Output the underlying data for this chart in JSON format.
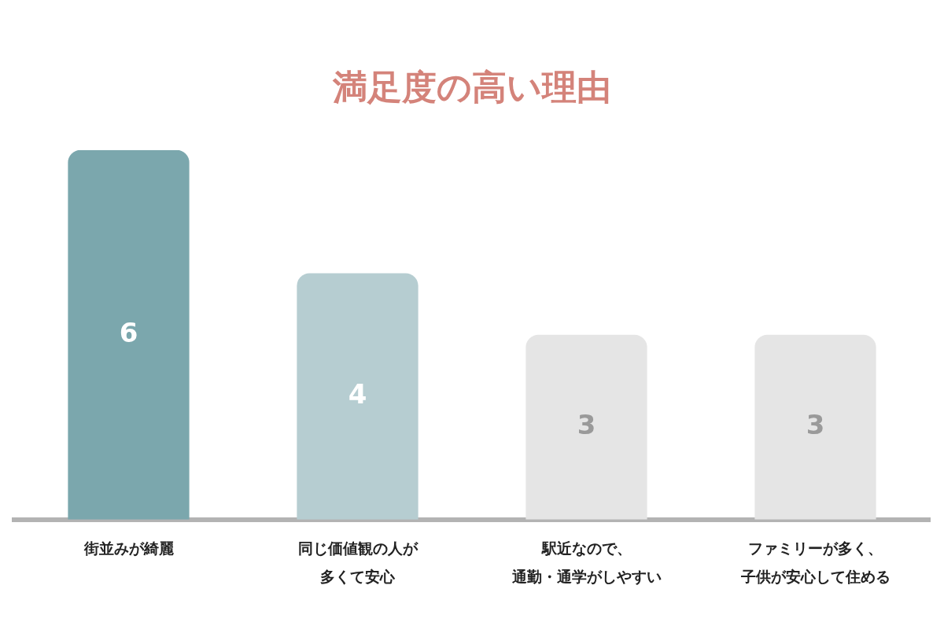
{
  "chart_data": {
    "type": "bar",
    "title": "満足度の高い理由",
    "categories": [
      "街並みが綺麗",
      "同じ価値観の人が多くて安心",
      "駅近なので、通勤・通学がしやすい",
      "ファミリーが多く、子供が安心して住める"
    ],
    "values": [
      6,
      4,
      3,
      3
    ],
    "colors": [
      "#7ba7ad",
      "#b6cdd1",
      "#e5e5e5",
      "#e5e5e5"
    ],
    "data_labels": true,
    "grid": false,
    "legend": false
  }
}
